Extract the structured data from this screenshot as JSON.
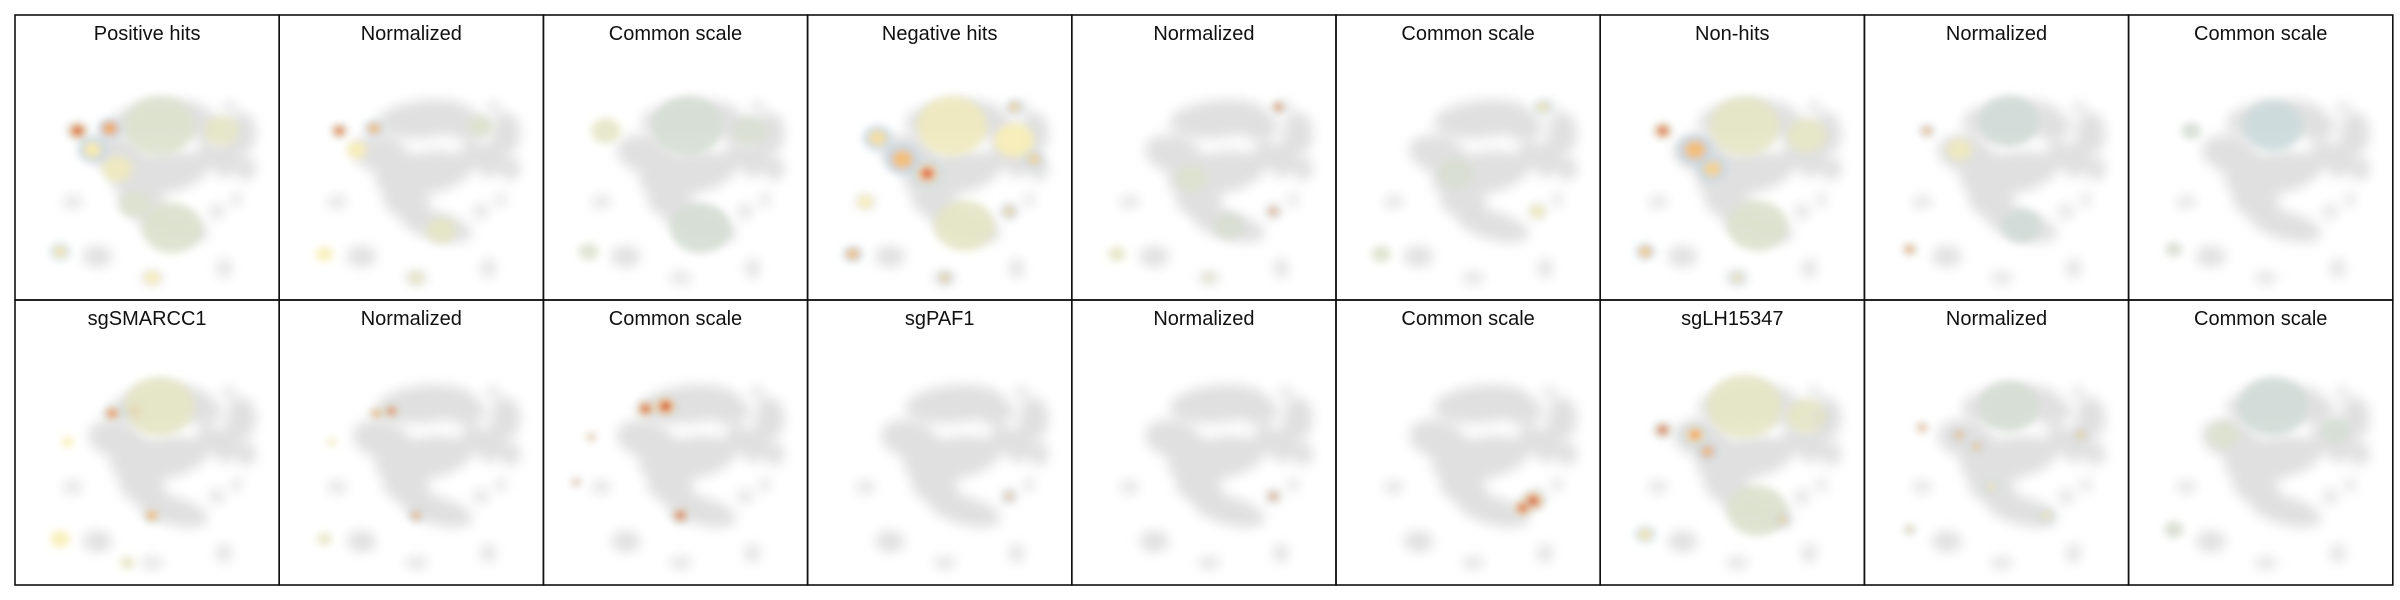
{
  "chart_data": {
    "type": "heatmap",
    "layout": {
      "rows": 2,
      "cols": 9
    },
    "colors": {
      "background_manifold": "#e0e0e0",
      "low": "#c3d6e3",
      "mid": "#fdf0b2",
      "high": "#f5a24a",
      "peak": "#c81612"
    },
    "manifold": [
      {
        "x": 0.55,
        "y": 0.5,
        "rx": 0.2,
        "ry": 0.09,
        "rot": -10
      },
      {
        "x": 0.38,
        "y": 0.42,
        "rx": 0.12,
        "ry": 0.08,
        "rot": 15
      },
      {
        "x": 0.56,
        "y": 0.27,
        "rx": 0.2,
        "ry": 0.08,
        "rot": -5
      },
      {
        "x": 0.72,
        "y": 0.3,
        "rx": 0.08,
        "ry": 0.06,
        "rot": 0
      },
      {
        "x": 0.75,
        "y": 0.42,
        "rx": 0.05,
        "ry": 0.06,
        "rot": 0
      },
      {
        "x": 0.82,
        "y": 0.44,
        "rx": 0.05,
        "ry": 0.08,
        "rot": 10
      },
      {
        "x": 0.88,
        "y": 0.33,
        "rx": 0.06,
        "ry": 0.09,
        "rot": 0
      },
      {
        "x": 0.9,
        "y": 0.48,
        "rx": 0.04,
        "ry": 0.05,
        "rot": 0
      },
      {
        "x": 0.48,
        "y": 0.62,
        "rx": 0.1,
        "ry": 0.07,
        "rot": 20
      },
      {
        "x": 0.6,
        "y": 0.72,
        "rx": 0.15,
        "ry": 0.06,
        "rot": 15
      },
      {
        "x": 0.2,
        "y": 0.62,
        "rx": 0.04,
        "ry": 0.025,
        "rot": 0
      },
      {
        "x": 0.3,
        "y": 0.85,
        "rx": 0.06,
        "ry": 0.045,
        "rot": 0
      },
      {
        "x": 0.52,
        "y": 0.94,
        "rx": 0.045,
        "ry": 0.025,
        "rot": 0
      },
      {
        "x": 0.78,
        "y": 0.66,
        "rx": 0.03,
        "ry": 0.03,
        "rot": 0
      },
      {
        "x": 0.86,
        "y": 0.61,
        "rx": 0.02,
        "ry": 0.03,
        "rot": 0
      },
      {
        "x": 0.81,
        "y": 0.9,
        "rx": 0.03,
        "ry": 0.04,
        "rot": 0
      },
      {
        "x": 0.83,
        "y": 0.22,
        "rx": 0.025,
        "ry": 0.025,
        "rot": 0
      }
    ],
    "panels": [
      {
        "title": "Positive hits",
        "spots": [
          {
            "x": 0.22,
            "y": 0.32,
            "r": 0.045,
            "level": 1.0
          },
          {
            "x": 0.35,
            "y": 0.31,
            "r": 0.05,
            "level": 0.65
          },
          {
            "x": 0.28,
            "y": 0.4,
            "r": 0.06,
            "level": 0.35
          },
          {
            "x": 0.38,
            "y": 0.48,
            "r": 0.06,
            "level": 0.25
          },
          {
            "x": 0.55,
            "y": 0.3,
            "r": 0.14,
            "level": 0.15
          },
          {
            "x": 0.8,
            "y": 0.32,
            "r": 0.07,
            "level": 0.2
          },
          {
            "x": 0.6,
            "y": 0.73,
            "r": 0.12,
            "level": 0.15
          },
          {
            "x": 0.15,
            "y": 0.83,
            "r": 0.04,
            "level": 0.35
          },
          {
            "x": 0.45,
            "y": 0.63,
            "r": 0.06,
            "level": 0.15
          },
          {
            "x": 0.52,
            "y": 0.94,
            "r": 0.03,
            "level": 0.3
          }
        ]
      },
      {
        "title": "Normalized",
        "spots": [
          {
            "x": 0.21,
            "y": 0.32,
            "r": 0.035,
            "level": 1.0
          },
          {
            "x": 0.35,
            "y": 0.31,
            "r": 0.04,
            "level": 0.55
          },
          {
            "x": 0.28,
            "y": 0.4,
            "r": 0.04,
            "level": 0.3
          },
          {
            "x": 0.62,
            "y": 0.74,
            "r": 0.06,
            "level": 0.2
          },
          {
            "x": 0.15,
            "y": 0.84,
            "r": 0.035,
            "level": 0.3
          },
          {
            "x": 0.78,
            "y": 0.3,
            "r": 0.05,
            "level": 0.15
          },
          {
            "x": 0.52,
            "y": 0.94,
            "r": 0.03,
            "level": 0.2
          }
        ]
      },
      {
        "title": "Common scale",
        "spots": [
          {
            "x": 0.22,
            "y": 0.32,
            "r": 0.06,
            "level": 0.2
          },
          {
            "x": 0.55,
            "y": 0.3,
            "r": 0.14,
            "level": 0.1
          },
          {
            "x": 0.8,
            "y": 0.32,
            "r": 0.07,
            "level": 0.12
          },
          {
            "x": 0.6,
            "y": 0.73,
            "r": 0.12,
            "level": 0.1
          },
          {
            "x": 0.15,
            "y": 0.83,
            "r": 0.04,
            "level": 0.15
          }
        ]
      },
      {
        "title": "Negative hits",
        "spots": [
          {
            "x": 0.8,
            "y": 0.22,
            "r": 0.035,
            "level": 0.45
          },
          {
            "x": 0.45,
            "y": 0.5,
            "r": 0.06,
            "level": 0.85
          },
          {
            "x": 0.35,
            "y": 0.44,
            "r": 0.07,
            "level": 0.55
          },
          {
            "x": 0.25,
            "y": 0.35,
            "r": 0.06,
            "level": 0.4
          },
          {
            "x": 0.55,
            "y": 0.3,
            "r": 0.14,
            "level": 0.25
          },
          {
            "x": 0.8,
            "y": 0.36,
            "r": 0.08,
            "level": 0.3
          },
          {
            "x": 0.88,
            "y": 0.44,
            "r": 0.04,
            "level": 0.45
          },
          {
            "x": 0.78,
            "y": 0.66,
            "r": 0.03,
            "level": 0.45
          },
          {
            "x": 0.6,
            "y": 0.72,
            "r": 0.12,
            "level": 0.2
          },
          {
            "x": 0.15,
            "y": 0.84,
            "r": 0.04,
            "level": 0.55
          },
          {
            "x": 0.52,
            "y": 0.94,
            "r": 0.03,
            "level": 0.45
          },
          {
            "x": 0.2,
            "y": 0.62,
            "r": 0.03,
            "level": 0.3
          }
        ]
      },
      {
        "title": "Normalized",
        "spots": [
          {
            "x": 0.8,
            "y": 0.22,
            "r": 0.03,
            "level": 0.9
          },
          {
            "x": 0.78,
            "y": 0.66,
            "r": 0.025,
            "level": 0.85
          },
          {
            "x": 0.45,
            "y": 0.52,
            "r": 0.06,
            "level": 0.15
          },
          {
            "x": 0.15,
            "y": 0.84,
            "r": 0.035,
            "level": 0.2
          },
          {
            "x": 0.52,
            "y": 0.94,
            "r": 0.02,
            "level": 0.2
          },
          {
            "x": 0.6,
            "y": 0.72,
            "r": 0.06,
            "level": 0.12
          }
        ]
      },
      {
        "title": "Common scale",
        "spots": [
          {
            "x": 0.8,
            "y": 0.22,
            "r": 0.035,
            "level": 0.35
          },
          {
            "x": 0.45,
            "y": 0.5,
            "r": 0.07,
            "level": 0.12
          },
          {
            "x": 0.78,
            "y": 0.66,
            "r": 0.03,
            "level": 0.25
          },
          {
            "x": 0.15,
            "y": 0.84,
            "r": 0.04,
            "level": 0.15
          }
        ]
      },
      {
        "title": "Non-hits",
        "spots": [
          {
            "x": 0.22,
            "y": 0.32,
            "r": 0.04,
            "level": 1.0
          },
          {
            "x": 0.35,
            "y": 0.4,
            "r": 0.07,
            "level": 0.55
          },
          {
            "x": 0.42,
            "y": 0.48,
            "r": 0.06,
            "level": 0.45
          },
          {
            "x": 0.55,
            "y": 0.3,
            "r": 0.14,
            "level": 0.2
          },
          {
            "x": 0.8,
            "y": 0.34,
            "r": 0.08,
            "level": 0.2
          },
          {
            "x": 0.15,
            "y": 0.83,
            "r": 0.04,
            "level": 0.5
          },
          {
            "x": 0.6,
            "y": 0.72,
            "r": 0.12,
            "level": 0.15
          },
          {
            "x": 0.52,
            "y": 0.94,
            "r": 0.03,
            "level": 0.35
          }
        ]
      },
      {
        "title": "Normalized",
        "spots": [
          {
            "x": 0.22,
            "y": 0.32,
            "r": 0.03,
            "level": 0.55
          },
          {
            "x": 0.35,
            "y": 0.4,
            "r": 0.05,
            "level": 0.25
          },
          {
            "x": 0.15,
            "y": 0.82,
            "r": 0.03,
            "level": 0.75
          },
          {
            "x": 0.55,
            "y": 0.28,
            "r": 0.12,
            "level": 0.08
          },
          {
            "x": 0.6,
            "y": 0.72,
            "r": 0.08,
            "level": 0.08
          }
        ]
      },
      {
        "title": "Common scale",
        "spots": [
          {
            "x": 0.15,
            "y": 0.82,
            "r": 0.035,
            "level": 0.12
          },
          {
            "x": 0.22,
            "y": 0.32,
            "r": 0.04,
            "level": 0.1
          },
          {
            "x": 0.55,
            "y": 0.3,
            "r": 0.12,
            "level": 0.05
          }
        ]
      },
      {
        "title": "sgSMARCC1",
        "spots": [
          {
            "x": 0.45,
            "y": 0.3,
            "r": 0.05,
            "level": 0.95
          },
          {
            "x": 0.36,
            "y": 0.31,
            "r": 0.04,
            "level": 0.8
          },
          {
            "x": 0.55,
            "y": 0.28,
            "r": 0.14,
            "level": 0.2
          },
          {
            "x": 0.52,
            "y": 0.74,
            "r": 0.035,
            "level": 0.7
          },
          {
            "x": 0.15,
            "y": 0.84,
            "r": 0.04,
            "level": 0.3
          },
          {
            "x": 0.18,
            "y": 0.43,
            "r": 0.025,
            "level": 0.3
          },
          {
            "x": 0.42,
            "y": 0.94,
            "r": 0.03,
            "level": 0.2
          }
        ]
      },
      {
        "title": "Normalized",
        "spots": [
          {
            "x": 0.42,
            "y": 0.3,
            "r": 0.035,
            "level": 0.9
          },
          {
            "x": 0.36,
            "y": 0.31,
            "r": 0.03,
            "level": 0.7
          },
          {
            "x": 0.52,
            "y": 0.74,
            "r": 0.03,
            "level": 0.6
          },
          {
            "x": 0.15,
            "y": 0.84,
            "r": 0.03,
            "level": 0.2
          },
          {
            "x": 0.18,
            "y": 0.43,
            "r": 0.02,
            "level": 0.25
          }
        ]
      },
      {
        "title": "Common scale",
        "spots": [
          {
            "x": 0.46,
            "y": 0.28,
            "r": 0.05,
            "level": 1.0
          },
          {
            "x": 0.38,
            "y": 0.29,
            "r": 0.04,
            "level": 1.0
          },
          {
            "x": 0.16,
            "y": 0.41,
            "r": 0.02,
            "level": 0.75
          },
          {
            "x": 0.52,
            "y": 0.74,
            "r": 0.04,
            "level": 0.95
          },
          {
            "x": 0.1,
            "y": 0.6,
            "r": 0.02,
            "level": 0.65
          }
        ]
      },
      {
        "title": "sgPAF1",
        "spots": [
          {
            "x": 0.78,
            "y": 0.66,
            "r": 0.025,
            "level": 0.5
          }
        ]
      },
      {
        "title": "Normalized",
        "spots": [
          {
            "x": 0.78,
            "y": 0.66,
            "r": 0.025,
            "level": 0.9
          }
        ]
      },
      {
        "title": "Common scale",
        "spots": [
          {
            "x": 0.76,
            "y": 0.68,
            "r": 0.05,
            "level": 1.0
          },
          {
            "x": 0.72,
            "y": 0.71,
            "r": 0.04,
            "level": 1.0
          }
        ]
      },
      {
        "title": "sgLH15347",
        "spots": [
          {
            "x": 0.22,
            "y": 0.38,
            "r": 0.04,
            "level": 0.95
          },
          {
            "x": 0.35,
            "y": 0.4,
            "r": 0.05,
            "level": 0.7
          },
          {
            "x": 0.4,
            "y": 0.47,
            "r": 0.04,
            "level": 0.6
          },
          {
            "x": 0.55,
            "y": 0.28,
            "r": 0.15,
            "level": 0.2
          },
          {
            "x": 0.8,
            "y": 0.32,
            "r": 0.08,
            "level": 0.2
          },
          {
            "x": 0.15,
            "y": 0.82,
            "r": 0.04,
            "level": 0.35
          },
          {
            "x": 0.6,
            "y": 0.72,
            "r": 0.12,
            "level": 0.15
          },
          {
            "x": 0.7,
            "y": 0.76,
            "r": 0.03,
            "level": 0.45
          },
          {
            "x": 0.86,
            "y": 0.33,
            "r": 0.03,
            "level": 0.35
          }
        ]
      },
      {
        "title": "Normalized",
        "spots": [
          {
            "x": 0.2,
            "y": 0.37,
            "r": 0.025,
            "level": 0.75
          },
          {
            "x": 0.35,
            "y": 0.4,
            "r": 0.03,
            "level": 0.55
          },
          {
            "x": 0.42,
            "y": 0.45,
            "r": 0.03,
            "level": 0.5
          },
          {
            "x": 0.84,
            "y": 0.4,
            "r": 0.03,
            "level": 0.45
          },
          {
            "x": 0.15,
            "y": 0.8,
            "r": 0.025,
            "level": 0.4
          },
          {
            "x": 0.48,
            "y": 0.62,
            "r": 0.03,
            "level": 0.35
          },
          {
            "x": 0.7,
            "y": 0.74,
            "r": 0.03,
            "level": 0.35
          },
          {
            "x": 0.55,
            "y": 0.28,
            "r": 0.12,
            "level": 0.1
          }
        ]
      },
      {
        "title": "Common scale",
        "spots": [
          {
            "x": 0.35,
            "y": 0.4,
            "r": 0.06,
            "level": 0.15
          },
          {
            "x": 0.55,
            "y": 0.28,
            "r": 0.14,
            "level": 0.08
          },
          {
            "x": 0.15,
            "y": 0.8,
            "r": 0.04,
            "level": 0.12
          },
          {
            "x": 0.8,
            "y": 0.38,
            "r": 0.06,
            "level": 0.1
          }
        ]
      }
    ]
  }
}
